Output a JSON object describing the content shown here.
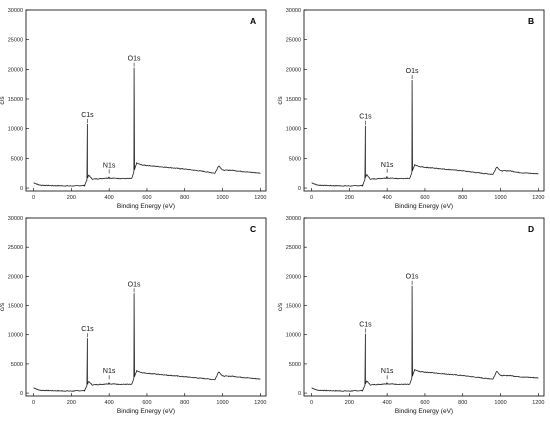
{
  "colors": {
    "line": "#1a1a1a",
    "axis": "#000000",
    "background": "#ffffff"
  },
  "chart_data": [
    {
      "type": "line",
      "panel_label": "A",
      "xlabel": "Binding Energy (eV)",
      "ylabel": "c/s",
      "xlim": [
        -40,
        1230
      ],
      "ylim": [
        -500,
        30000
      ],
      "xticks": [
        "0",
        "200",
        "400",
        "600",
        "800",
        "1000",
        "1200"
      ],
      "yticks": [
        "0",
        "5000",
        "10000",
        "15000",
        "20000",
        "25000",
        "30000"
      ],
      "grid": false,
      "annotations": [
        {
          "text": "C1s",
          "x": 285,
          "y": 10800
        },
        {
          "text": "N1s",
          "x": 400,
          "y": 2300
        },
        {
          "text": "O1s",
          "x": 532,
          "y": 20300
        }
      ],
      "peaks": {
        "C1s": 10800,
        "N1s": 1900,
        "O1s": 20300
      },
      "series": [
        {
          "x": [
            0,
            30,
            100,
            200,
            270,
            292,
            310,
            360,
            390,
            470,
            520,
            545,
            570,
            600,
            700,
            800,
            900,
            960,
            980,
            1000,
            1050,
            1100,
            1200
          ],
          "y": [
            900,
            500,
            400,
            350,
            420,
            2200,
            1500,
            1600,
            1700,
            1600,
            1600,
            4200,
            3900,
            3800,
            3500,
            3200,
            2800,
            2500,
            3800,
            3000,
            3000,
            2800,
            2500
          ]
        }
      ]
    },
    {
      "type": "line",
      "panel_label": "B",
      "xlabel": "Binding Energy (eV)",
      "ylabel": "c/s",
      "xlim": [
        -40,
        1230
      ],
      "ylim": [
        -500,
        30000
      ],
      "xticks": [
        "0",
        "200",
        "400",
        "600",
        "800",
        "1000",
        "1200"
      ],
      "yticks": [
        "0",
        "5000",
        "10000",
        "15000",
        "20000",
        "25000",
        "30000"
      ],
      "grid": false,
      "annotations": [
        {
          "text": "C1s",
          "x": 285,
          "y": 10500
        },
        {
          "text": "N1s",
          "x": 400,
          "y": 2400
        },
        {
          "text": "O1s",
          "x": 532,
          "y": 18200
        }
      ],
      "peaks": {
        "C1s": 10500,
        "N1s": 2000,
        "O1s": 18200
      },
      "series": [
        {
          "x": [
            0,
            30,
            100,
            200,
            270,
            292,
            310,
            360,
            390,
            470,
            520,
            545,
            570,
            600,
            700,
            800,
            900,
            960,
            980,
            1000,
            1050,
            1100,
            1200
          ],
          "y": [
            900,
            500,
            400,
            350,
            420,
            2300,
            1500,
            1600,
            1700,
            1600,
            1600,
            3900,
            3600,
            3500,
            3200,
            2900,
            2500,
            2300,
            3600,
            2900,
            2900,
            2600,
            2400
          ]
        }
      ]
    },
    {
      "type": "line",
      "panel_label": "C",
      "xlabel": "Binding Energy (eV)",
      "ylabel": "c/s",
      "xlim": [
        -40,
        1230
      ],
      "ylim": [
        -500,
        30000
      ],
      "xticks": [
        "0",
        "200",
        "400",
        "600",
        "800",
        "1000",
        "1200"
      ],
      "yticks": [
        "0",
        "5000",
        "10000",
        "15000",
        "20000",
        "25000",
        "30000"
      ],
      "grid": false,
      "annotations": [
        {
          "text": "C1s",
          "x": 285,
          "y": 9400
        },
        {
          "text": "N1s",
          "x": 400,
          "y": 2200
        },
        {
          "text": "O1s",
          "x": 532,
          "y": 17100
        }
      ],
      "peaks": {
        "C1s": 9400,
        "N1s": 1800,
        "O1s": 17100
      },
      "series": [
        {
          "x": [
            0,
            30,
            100,
            200,
            270,
            292,
            310,
            360,
            390,
            470,
            520,
            545,
            570,
            600,
            700,
            800,
            900,
            960,
            980,
            1000,
            1050,
            1100,
            1200
          ],
          "y": [
            900,
            500,
            400,
            350,
            420,
            2000,
            1400,
            1500,
            1600,
            1500,
            1500,
            3800,
            3500,
            3400,
            3100,
            2800,
            2500,
            2300,
            3700,
            2900,
            2900,
            2700,
            2400
          ]
        }
      ]
    },
    {
      "type": "line",
      "panel_label": "D",
      "xlabel": "Binding Energy (eV)",
      "ylabel": "c/s",
      "xlim": [
        -40,
        1230
      ],
      "ylim": [
        -500,
        30000
      ],
      "xticks": [
        "0",
        "200",
        "400",
        "600",
        "800",
        "1000",
        "1200"
      ],
      "yticks": [
        "0",
        "5000",
        "10000",
        "15000",
        "20000",
        "25000",
        "30000"
      ],
      "grid": false,
      "annotations": [
        {
          "text": "C1s",
          "x": 285,
          "y": 10200
        },
        {
          "text": "N1s",
          "x": 400,
          "y": 2200
        },
        {
          "text": "O1s",
          "x": 532,
          "y": 18400
        }
      ],
      "peaks": {
        "C1s": 10200,
        "N1s": 1800,
        "O1s": 18400
      },
      "series": [
        {
          "x": [
            0,
            30,
            100,
            200,
            270,
            292,
            310,
            360,
            390,
            470,
            520,
            545,
            570,
            600,
            700,
            800,
            900,
            960,
            980,
            1000,
            1050,
            1100,
            1200
          ],
          "y": [
            900,
            500,
            400,
            350,
            420,
            2100,
            1400,
            1500,
            1600,
            1500,
            1500,
            4000,
            3700,
            3600,
            3300,
            3000,
            2600,
            2400,
            3800,
            3000,
            3000,
            2800,
            2600
          ]
        }
      ]
    }
  ]
}
